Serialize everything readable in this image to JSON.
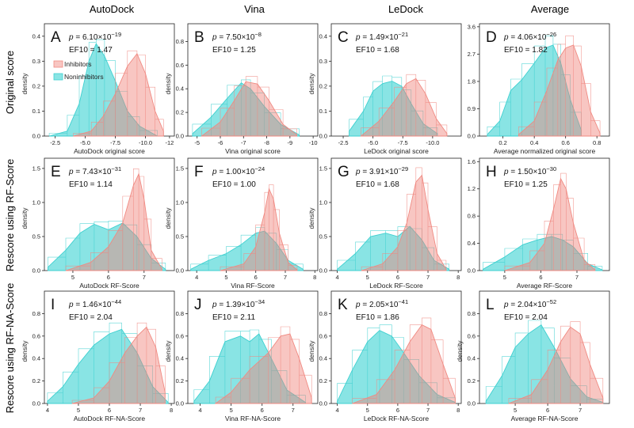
{
  "colors": {
    "inhibitors": "#f08a82",
    "noninhibitors": "#3fd0d0",
    "inhibitors_fill": "rgba(240,128,120,0.45)",
    "noninhibitors_fill": "rgba(40,205,205,0.55)"
  },
  "column_titles": [
    "AutoDock",
    "Vina",
    "LeDock",
    "Average"
  ],
  "row_titles": [
    "Original score",
    "Rescore using RF-Score",
    "Rescore using RF-NA-Score"
  ],
  "legend": {
    "inhibitors": "Inhibitors",
    "noninhibitors": "Noninhibitors"
  },
  "chart_data": [
    {
      "type": "area",
      "letter": "A",
      "p_base": "6.10",
      "p_exp": "−19",
      "ef10": "EF10 = 1.47",
      "xlabel": "AutoDock original score",
      "ylabel": "density",
      "legend": "top-left",
      "xlim": [
        -1.6,
        -12.4
      ],
      "ylim": [
        0,
        0.45
      ],
      "xticks": [
        -2.5,
        -5.0,
        -7.5,
        -10.0,
        -12
      ],
      "xtick_labels": [
        "-2.5",
        "-5.0",
        "-7.5",
        "-10.0",
        "-12"
      ],
      "yticks": [
        0,
        0.1,
        0.2,
        0.3,
        0.4
      ],
      "ytick_labels": [
        "0.0",
        "0.1",
        "0.2",
        "0.3",
        "0.4"
      ],
      "series": [
        {
          "name": "Inhibitors",
          "x": [
            -4,
            -5.5,
            -6.5,
            -7.5,
            -8.5,
            -9.3,
            -10,
            -10.8,
            -11.5
          ],
          "values": [
            0,
            0.02,
            0.08,
            0.17,
            0.28,
            0.33,
            0.25,
            0.1,
            0.02
          ]
        },
        {
          "name": "Noninhibitors",
          "x": [
            -2,
            -3.5,
            -4.5,
            -5.3,
            -5.9,
            -6.6,
            -7.5,
            -8.5,
            -9.5,
            -11
          ],
          "values": [
            0,
            0.02,
            0.13,
            0.3,
            0.37,
            0.32,
            0.22,
            0.1,
            0.04,
            0
          ]
        }
      ]
    },
    {
      "type": "area",
      "letter": "B",
      "p_base": "7.50",
      "p_exp": "−8",
      "ef10": "EF10 = 1.25",
      "xlabel": "Vina original score",
      "ylabel": "density",
      "xlim": [
        -4.6,
        -10.2
      ],
      "ylim": [
        0,
        0.95
      ],
      "xticks": [
        -5,
        -6,
        -7,
        -8,
        -9,
        -10
      ],
      "xtick_labels": [
        "-5",
        "-6",
        "-7",
        "-8",
        "-9",
        "-10"
      ],
      "yticks": [
        0,
        0.2,
        0.4,
        0.6,
        0.8
      ],
      "ytick_labels": [
        "0.0",
        "0.2",
        "0.4",
        "0.6",
        "0.8"
      ],
      "series": [
        {
          "name": "Inhibitors",
          "x": [
            -5.2,
            -6,
            -6.6,
            -7.1,
            -7.6,
            -8.1,
            -8.7,
            -9.3
          ],
          "values": [
            0,
            0.12,
            0.3,
            0.46,
            0.44,
            0.3,
            0.1,
            0.01
          ]
        },
        {
          "name": "Noninhibitors",
          "x": [
            -4.8,
            -5.6,
            -6.3,
            -6.9,
            -7.3,
            -7.9,
            -8.6,
            -9.4
          ],
          "values": [
            0.02,
            0.16,
            0.32,
            0.45,
            0.4,
            0.25,
            0.1,
            0.01
          ]
        }
      ]
    },
    {
      "type": "area",
      "letter": "C",
      "p_base": "1.49",
      "p_exp": "−21",
      "ef10": "EF10 = 1.68",
      "xlabel": "LeDock original score",
      "ylabel": "density",
      "xlim": [
        -1.5,
        -12.4
      ],
      "ylim": [
        0,
        0.45
      ],
      "xticks": [
        -2.5,
        -5.0,
        -7.5,
        -10.0
      ],
      "xtick_labels": [
        "-2.5",
        "-5.0",
        "-7.5",
        "-10.0"
      ],
      "yticks": [
        0,
        0.1,
        0.2,
        0.3,
        0.4
      ],
      "ytick_labels": [
        "0.0",
        "0.1",
        "0.2",
        "0.3",
        "0.4"
      ],
      "series": [
        {
          "name": "Inhibitors",
          "x": [
            -4,
            -5.5,
            -6.8,
            -7.8,
            -8.6,
            -9.4,
            -10.3,
            -11.2
          ],
          "values": [
            0,
            0.06,
            0.14,
            0.21,
            0.23,
            0.17,
            0.07,
            0.01
          ]
        },
        {
          "name": "Noninhibitors",
          "x": [
            -3,
            -4.2,
            -5,
            -5.8,
            -6.6,
            -7.4,
            -8.2,
            -9.2,
            -10.4
          ],
          "values": [
            0.02,
            0.1,
            0.18,
            0.21,
            0.22,
            0.2,
            0.13,
            0.05,
            0.01
          ]
        }
      ]
    },
    {
      "type": "area",
      "letter": "D",
      "p_base": "4.06",
      "p_exp": "−26",
      "ef10": "EF10 = 1.82",
      "xlabel": "Average normalized original score",
      "ylabel": "",
      "xlim": [
        0.05,
        0.88
      ],
      "ylim": [
        0,
        3.7
      ],
      "xticks": [
        0.2,
        0.4,
        0.6,
        0.8
      ],
      "xtick_labels": [
        "0.2",
        "0.4",
        "0.6",
        "0.8"
      ],
      "yticks": [
        0,
        0.9,
        1.8,
        2.7,
        3.6
      ],
      "ytick_labels": [
        "0.0",
        "0.9",
        "1.8",
        "2.7",
        "3.6"
      ],
      "series": [
        {
          "name": "Inhibitors",
          "x": [
            0.3,
            0.4,
            0.48,
            0.55,
            0.6,
            0.65,
            0.7,
            0.76,
            0.82
          ],
          "values": [
            0.05,
            0.5,
            1.5,
            2.5,
            2.9,
            3.0,
            2.3,
            0.8,
            0.1
          ]
        },
        {
          "name": "Noninhibitors",
          "x": [
            0.1,
            0.18,
            0.25,
            0.32,
            0.4,
            0.47,
            0.52,
            0.57,
            0.63,
            0.7
          ],
          "values": [
            0.05,
            0.5,
            1.5,
            1.85,
            2.4,
            2.9,
            3.0,
            2.4,
            1.2,
            0.2
          ]
        }
      ]
    },
    {
      "type": "area",
      "letter": "E",
      "p_base": "7.43",
      "p_exp": "−31",
      "ef10": "EF10 = 1.14",
      "xlabel": "AutoDock RF-Score",
      "ylabel": "density",
      "xlim": [
        4.2,
        7.85
      ],
      "ylim": [
        0,
        1.65
      ],
      "xticks": [
        5,
        6,
        7
      ],
      "xtick_labels": [
        "5",
        "6",
        "7"
      ],
      "yticks": [
        0,
        0.5,
        1.0,
        1.5
      ],
      "ytick_labels": [
        "0.0",
        "0.5",
        "1.0",
        "1.5"
      ],
      "series": [
        {
          "name": "Inhibitors",
          "x": [
            4.8,
            5.5,
            6.0,
            6.4,
            6.7,
            6.85,
            7.0,
            7.2,
            7.5
          ],
          "values": [
            0,
            0.12,
            0.35,
            0.7,
            1.25,
            1.42,
            1.05,
            0.3,
            0.02
          ]
        },
        {
          "name": "Noninhibitors",
          "x": [
            4.3,
            4.8,
            5.2,
            5.6,
            6.0,
            6.4,
            6.8,
            7.2,
            7.6
          ],
          "values": [
            0.05,
            0.3,
            0.55,
            0.68,
            0.6,
            0.7,
            0.5,
            0.18,
            0.02
          ]
        }
      ]
    },
    {
      "type": "area",
      "letter": "F",
      "p_base": "1.00",
      "p_exp": "−24",
      "ef10": "EF10 = 1.00",
      "xlabel": "Vina RF-Score",
      "ylabel": "density",
      "xlim": [
        3.7,
        8.1
      ],
      "ylim": [
        0,
        1.65
      ],
      "xticks": [
        4,
        5,
        6,
        7,
        8
      ],
      "xtick_labels": [
        "4",
        "5",
        "6",
        "7",
        "8"
      ],
      "yticks": [
        0,
        0.5,
        1.0,
        1.5
      ],
      "ytick_labels": [
        "0.0",
        "0.5",
        "1.0",
        "1.5"
      ],
      "series": [
        {
          "name": "Inhibitors",
          "x": [
            4.8,
            5.6,
            6.0,
            6.3,
            6.45,
            6.6,
            6.8,
            7.1,
            7.4
          ],
          "values": [
            0,
            0.1,
            0.35,
            0.85,
            1.2,
            1.05,
            0.55,
            0.12,
            0.01
          ]
        },
        {
          "name": "Noninhibitors",
          "x": [
            3.8,
            4.4,
            5.0,
            5.5,
            6.0,
            6.3,
            6.7,
            7.1,
            7.6
          ],
          "values": [
            0.02,
            0.15,
            0.25,
            0.38,
            0.55,
            0.58,
            0.4,
            0.15,
            0.02
          ]
        }
      ]
    },
    {
      "type": "area",
      "letter": "G",
      "p_base": "3.91",
      "p_exp": "−29",
      "ef10": "EF10 = 1.68",
      "xlabel": "LeDock RF-Score",
      "ylabel": "density",
      "xlim": [
        3.8,
        8.1
      ],
      "ylim": [
        0,
        1.65
      ],
      "xticks": [
        4,
        5,
        6,
        7,
        8
      ],
      "xtick_labels": [
        "4",
        "5",
        "6",
        "7",
        "8"
      ],
      "yticks": [
        0,
        0.5,
        1.0,
        1.5
      ],
      "ytick_labels": [
        "0.0",
        "0.5",
        "1.0",
        "1.5"
      ],
      "series": [
        {
          "name": "Inhibitors",
          "x": [
            4.8,
            5.5,
            6.0,
            6.3,
            6.6,
            6.8,
            7.0,
            7.3,
            7.6
          ],
          "values": [
            0,
            0.1,
            0.35,
            0.7,
            1.3,
            1.4,
            0.9,
            0.25,
            0.02
          ]
        },
        {
          "name": "Noninhibitors",
          "x": [
            4.0,
            4.6,
            5.1,
            5.6,
            6.0,
            6.4,
            6.8,
            7.2,
            7.7
          ],
          "values": [
            0.02,
            0.25,
            0.5,
            0.55,
            0.5,
            0.65,
            0.45,
            0.15,
            0.02
          ]
        }
      ]
    },
    {
      "type": "area",
      "letter": "H",
      "p_base": "1.50",
      "p_exp": "−30",
      "ef10": "EF10 = 1.25",
      "xlabel": "Average RF-Score",
      "ylabel": "",
      "xlim": [
        4.3,
        7.9
      ],
      "ylim": [
        0,
        1.65
      ],
      "xticks": [
        5,
        6,
        7
      ],
      "xtick_labels": [
        "5",
        "6",
        "7"
      ],
      "yticks": [
        0,
        0.4,
        0.8,
        1.2,
        1.6
      ],
      "ytick_labels": [
        "0.0",
        "0.4",
        "0.8",
        "1.2",
        "1.6"
      ],
      "series": [
        {
          "name": "Inhibitors",
          "x": [
            5.0,
            5.7,
            6.1,
            6.35,
            6.55,
            6.7,
            6.9,
            7.2,
            7.5
          ],
          "values": [
            0,
            0.12,
            0.4,
            0.9,
            1.35,
            1.2,
            0.7,
            0.15,
            0.01
          ]
        },
        {
          "name": "Noninhibitors",
          "x": [
            4.4,
            5.0,
            5.5,
            5.9,
            6.3,
            6.6,
            6.9,
            7.3,
            7.7
          ],
          "values": [
            0.02,
            0.2,
            0.38,
            0.45,
            0.5,
            0.45,
            0.35,
            0.1,
            0.01
          ]
        }
      ]
    },
    {
      "type": "area",
      "letter": "I",
      "p_base": "1.46",
      "p_exp": "−44",
      "ef10": "EF10 = 2.04",
      "xlabel": "AutoDock RF-NA-Score",
      "ylabel": "density",
      "xlim": [
        3.9,
        8.1
      ],
      "ylim": [
        0,
        1.0
      ],
      "xticks": [
        4,
        5,
        6,
        7,
        8
      ],
      "xtick_labels": [
        "4",
        "5",
        "6",
        "7",
        "8"
      ],
      "yticks": [
        0,
        0.2,
        0.4,
        0.6,
        0.8
      ],
      "ytick_labels": [
        "0.0",
        "0.2",
        "0.4",
        "0.6",
        "0.8"
      ],
      "series": [
        {
          "name": "Inhibitors",
          "x": [
            4.8,
            5.5,
            6.0,
            6.5,
            6.9,
            7.2,
            7.5,
            7.8
          ],
          "values": [
            0,
            0.05,
            0.2,
            0.45,
            0.6,
            0.68,
            0.5,
            0.1
          ]
        },
        {
          "name": "Noninhibitors",
          "x": [
            4.0,
            4.5,
            5.0,
            5.5,
            6.0,
            6.4,
            6.9,
            7.4,
            7.9
          ],
          "values": [
            0.02,
            0.15,
            0.35,
            0.52,
            0.62,
            0.66,
            0.45,
            0.15,
            0.01
          ]
        }
      ]
    },
    {
      "type": "area",
      "letter": "J",
      "p_base": "1.39",
      "p_exp": "−34",
      "ef10": "EF10 = 2.11",
      "xlabel": "Vina RF-NA-Score",
      "ylabel": "density",
      "xlim": [
        3.6,
        7.8
      ],
      "ylim": [
        0,
        1.0
      ],
      "xticks": [
        4,
        5,
        6,
        7
      ],
      "xtick_labels": [
        "4",
        "5",
        "6",
        "7"
      ],
      "yticks": [
        0,
        0.2,
        0.4,
        0.6,
        0.8
      ],
      "ytick_labels": [
        "0.0",
        "0.2",
        "0.4",
        "0.6",
        "0.8"
      ],
      "series": [
        {
          "name": "Inhibitors",
          "x": [
            4.5,
            5.0,
            5.6,
            6.2,
            6.6,
            6.9,
            7.2,
            7.6
          ],
          "values": [
            0,
            0.1,
            0.3,
            0.45,
            0.6,
            0.62,
            0.4,
            0.05
          ]
        },
        {
          "name": "Noninhibitors",
          "x": [
            3.8,
            4.3,
            4.8,
            5.3,
            5.6,
            5.9,
            6.3,
            6.8,
            7.4
          ],
          "values": [
            0.02,
            0.2,
            0.55,
            0.6,
            0.55,
            0.62,
            0.4,
            0.12,
            0.01
          ]
        }
      ]
    },
    {
      "type": "area",
      "letter": "K",
      "p_base": "2.05",
      "p_exp": "−41",
      "ef10": "EF10 = 1.86",
      "xlabel": "LeDock RF-NA-Score",
      "ylabel": "density",
      "xlim": [
        3.8,
        8.1
      ],
      "ylim": [
        0,
        1.0
      ],
      "xticks": [
        4,
        5,
        6,
        7,
        8
      ],
      "xtick_labels": [
        "4",
        "5",
        "6",
        "7",
        "8"
      ],
      "yticks": [
        0,
        0.2,
        0.4,
        0.6,
        0.8
      ],
      "ytick_labels": [
        "0.0",
        "0.2",
        "0.4",
        "0.6",
        "0.8"
      ],
      "series": [
        {
          "name": "Inhibitors",
          "x": [
            4.5,
            5.3,
            5.9,
            6.4,
            6.8,
            7.1,
            7.5,
            7.9
          ],
          "values": [
            0,
            0.08,
            0.3,
            0.55,
            0.7,
            0.66,
            0.35,
            0.05
          ]
        },
        {
          "name": "Noninhibitors",
          "x": [
            4.0,
            4.5,
            5.0,
            5.4,
            5.8,
            6.2,
            6.7,
            7.3,
            7.9
          ],
          "values": [
            0.02,
            0.3,
            0.55,
            0.65,
            0.6,
            0.45,
            0.25,
            0.08,
            0.01
          ]
        }
      ]
    },
    {
      "type": "area",
      "letter": "L",
      "p_base": "2.04",
      "p_exp": "−52",
      "ef10": "EF10 = 2.04",
      "xlabel": "Average RF-NA-Score",
      "ylabel": "density",
      "xlim": [
        3.9,
        7.9
      ],
      "ylim": [
        0,
        1.0
      ],
      "xticks": [
        5,
        6,
        7
      ],
      "xtick_labels": [
        "5",
        "6",
        "7"
      ],
      "yticks": [
        0,
        0.2,
        0.4,
        0.6,
        0.8
      ],
      "ytick_labels": [
        "0.0",
        "0.2",
        "0.4",
        "0.6",
        "0.8"
      ],
      "series": [
        {
          "name": "Inhibitors",
          "x": [
            4.8,
            5.5,
            6.0,
            6.4,
            6.7,
            7.0,
            7.3,
            7.7
          ],
          "values": [
            0,
            0.08,
            0.3,
            0.55,
            0.68,
            0.62,
            0.35,
            0.05
          ]
        },
        {
          "name": "Noninhibitors",
          "x": [
            4.1,
            4.6,
            5.0,
            5.4,
            5.8,
            6.2,
            6.7,
            7.2,
            7.7
          ],
          "values": [
            0.02,
            0.25,
            0.5,
            0.62,
            0.7,
            0.5,
            0.22,
            0.06,
            0.01
          ]
        }
      ]
    }
  ]
}
